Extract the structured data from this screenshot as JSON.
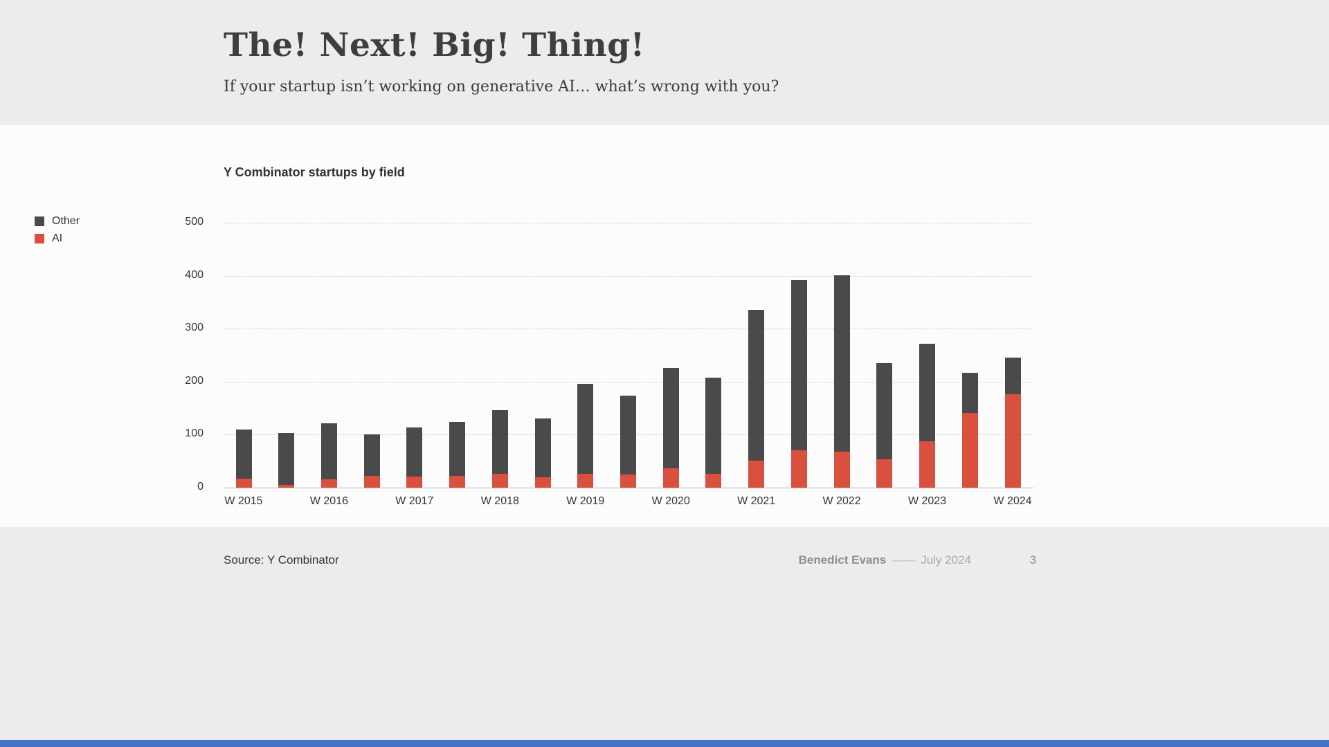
{
  "slide": {
    "title": "The! Next! Big! Thing!",
    "subtitle": "If your startup isn’t working on generative AI… what’s wrong with you?",
    "accent_color": "#4472c4",
    "footer": {
      "source": "Source: Y Combinator",
      "author": "Benedict Evans",
      "separator": "——",
      "date": "July 2024",
      "page": "3"
    }
  },
  "chart_data": {
    "type": "bar",
    "stacked": true,
    "title": "Y Combinator startups by field",
    "legend": [
      {
        "name": "Other",
        "color": "#4a4a4a"
      },
      {
        "name": "AI",
        "color": "#d9503f"
      }
    ],
    "legend_position": "left",
    "grid": "horizontal-dotted",
    "ylim": [
      0,
      500
    ],
    "yticks": [
      0,
      100,
      200,
      300,
      400,
      500
    ],
    "x_tick_labels": [
      "W 2015",
      "W 2016",
      "W 2017",
      "W 2018",
      "W 2019",
      "W 2020",
      "W 2021",
      "W 2022",
      "W 2023",
      "W 2024"
    ],
    "x_tick_every": 2,
    "bars_per_year": 2,
    "series": [
      {
        "name": "Other",
        "values": [
          93,
          98,
          105,
          78,
          92,
          102,
          120,
          111,
          170,
          148,
          190,
          181,
          284,
          322,
          333,
          182,
          183,
          76,
          70
        ]
      },
      {
        "name": "AI",
        "values": [
          17,
          5,
          16,
          22,
          21,
          22,
          26,
          20,
          26,
          25,
          36,
          26,
          51,
          70,
          68,
          53,
          88,
          141,
          176
        ]
      }
    ]
  }
}
